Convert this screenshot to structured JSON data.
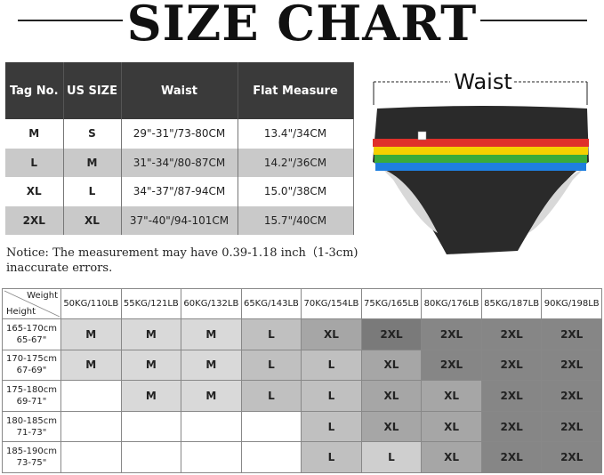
{
  "title": "SIZE CHART",
  "size_table": {
    "headers": [
      "Tag No.",
      "US SIZE",
      "Waist",
      "Flat Measure"
    ],
    "rows": [
      [
        "M",
        "S",
        "29\"-31\"/73-80CM",
        "13.4\"/34CM"
      ],
      [
        "L",
        "M",
        "31\"-34\"/80-87CM",
        "14.2\"/36CM"
      ],
      [
        "XL",
        "L",
        "34\"-37\"/87-94CM",
        "15.0\"/38CM"
      ],
      [
        "2XL",
        "XL",
        "37\"-40\"/94-101CM",
        "15.7\"/40CM"
      ]
    ]
  },
  "notice": "Notice: The measurement may have 0.39-1.18 inch（1-3cm) inaccurate errors.",
  "diagram": {
    "waist_label": "Waist",
    "stripe_colors": [
      "#e0302a",
      "#f5d000",
      "#3aab3a",
      "#1f7fe0"
    ]
  },
  "fit_table": {
    "corner_weight": "Weight",
    "corner_height": "Height",
    "weights": [
      "50KG/110LB",
      "55KG/121LB",
      "60KG/132LB",
      "65KG/143LB",
      "70KG/154LB",
      "75KG/165LB",
      "80KG/176LB",
      "85KG/187LB",
      "90KG/198LB"
    ],
    "rows": [
      {
        "cm": "165-170cm",
        "in": "65-67\"",
        "sizes": [
          "M",
          "M",
          "M",
          "L",
          "XL",
          "2XL",
          "2XL",
          "2XL",
          "2XL"
        ]
      },
      {
        "cm": "170-175cm",
        "in": "67-69\"",
        "sizes": [
          "M",
          "M",
          "M",
          "L",
          "L",
          "XL",
          "2XL",
          "2XL",
          "2XL"
        ]
      },
      {
        "cm": "175-180cm",
        "in": "69-71\"",
        "sizes": [
          "",
          "M",
          "M",
          "L",
          "L",
          "XL",
          "XL",
          "2XL",
          "2XL"
        ]
      },
      {
        "cm": "180-185cm",
        "in": "71-73\"",
        "sizes": [
          "",
          "",
          "",
          "",
          "L",
          "XL",
          "XL",
          "2XL",
          "2XL"
        ]
      },
      {
        "cm": "185-190cm",
        "in": "73-75\"",
        "sizes": [
          "",
          "",
          "",
          "",
          "L",
          "L",
          "XL",
          "2XL",
          "2XL"
        ]
      }
    ],
    "shade_colors": {
      "M": "#d9d9d9",
      "L": "#c0c0c0",
      "XL": "#a6a6a6",
      "2XL": "#868686",
      "": "#ffffff"
    }
  }
}
